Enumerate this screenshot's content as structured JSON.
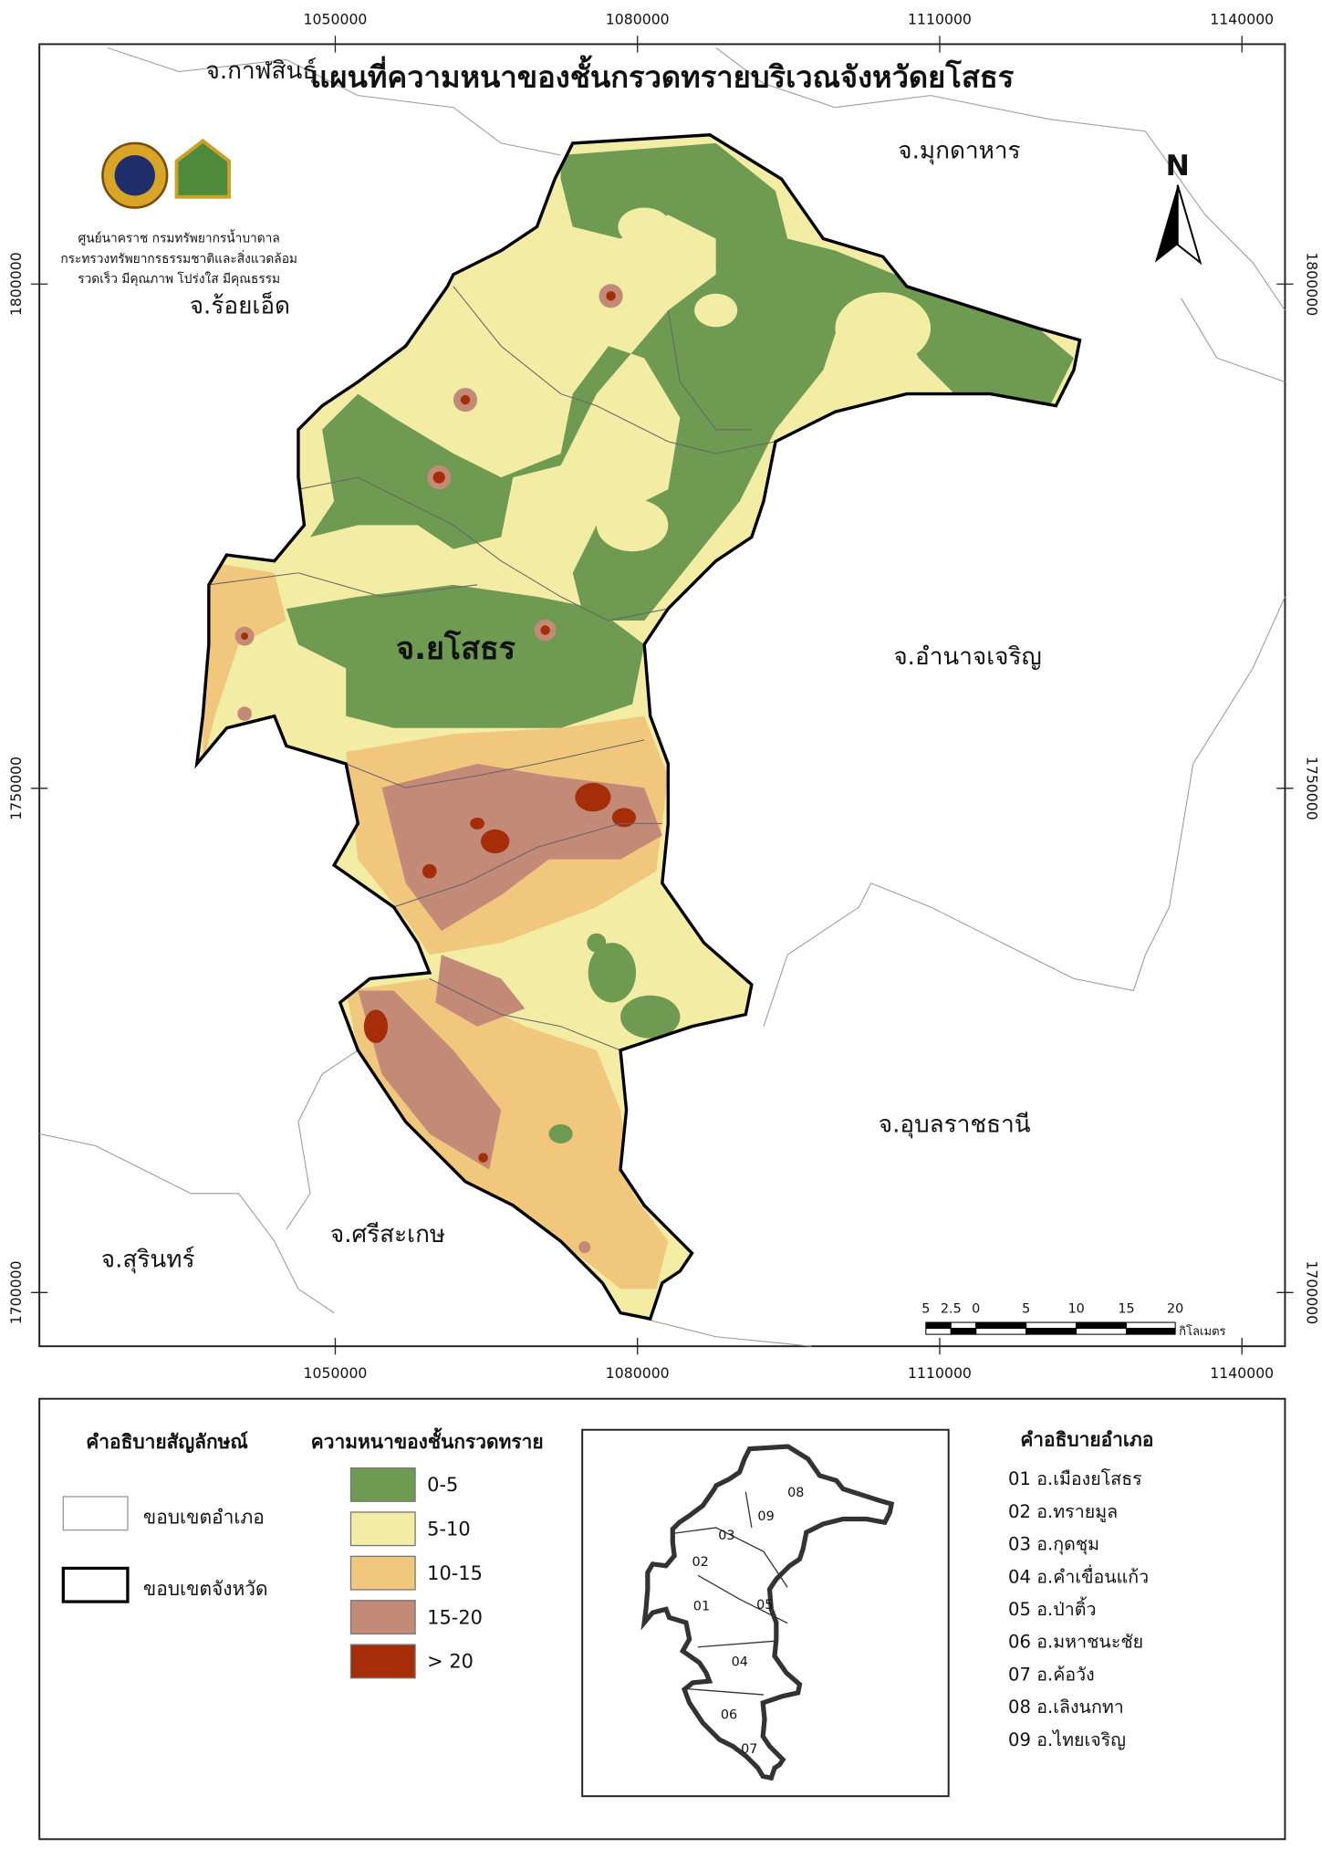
{
  "title": "แผนที่ความหนาของชั้นกรวดทรายบริเวณจังหวัดยโสธร",
  "logo_text": [
    "ศูนย์นาคราช กรมทรัพยากรน้ำบาดาล",
    "กระทรวงทรัพยากรธรรมชาติและสิ่งแวดล้อม",
    "รวดเร็ว มีคุณภาพ โปร่งใส มีคุณธรรม"
  ],
  "place_labels": [
    "จ.กาฬสินธุ์",
    "จ.มุกดาหาร",
    "จ.ร้อยเอ็ด",
    "จ.ยโสธร",
    "จ.อำนาจเจริญ",
    "จ.อุบลราชธานี",
    "จ.ศรีสะเกษ",
    "จ.สุรินทร์"
  ],
  "north_arrow": "N",
  "grid": {
    "x_ticks": [
      1050000,
      1080000,
      1110000,
      1140000
    ],
    "y_ticks": [
      1800000,
      1750000,
      1700000
    ]
  },
  "scale_bar": {
    "labels": [
      "5",
      "2.5",
      "0",
      "5",
      "10",
      "15",
      "20"
    ],
    "unit": "กิโลเมตร"
  },
  "legend": {
    "symbol_title": "คำอธิบายสัญลักษณ์",
    "symbols": [
      "ขอบเขตอำเภอ",
      "ขอบเขตจังหวัด"
    ],
    "thickness_title": "ความหนาของชั้นกรวดทราย",
    "classes": [
      {
        "label": "0-5",
        "color": "#6f9a52"
      },
      {
        "label": "5-10",
        "color": "#f2eca4"
      },
      {
        "label": "10-15",
        "color": "#f0c77c"
      },
      {
        "label": "15-20",
        "color": "#c48a78"
      },
      {
        "label": "> 20",
        "color": "#a52d07"
      }
    ]
  },
  "inset_labels": [
    "01",
    "02",
    "03",
    "04",
    "05",
    "06",
    "07",
    "08",
    "09"
  ],
  "district_title": "คำอธิบายอำเภอ",
  "districts": [
    "01 อ.เมืองยโสธร",
    "02 อ.ทรายมูล",
    "03 อ.กุดชุม",
    "04 อ.คำเขื่อนแก้ว",
    "05 อ.ป่าติ้ว",
    "06 อ.มหาชนะชัย",
    "07 อ.ค้อวัง",
    "08 อ.เลิงนกทา",
    "09 อ.ไทยเจริญ"
  ]
}
